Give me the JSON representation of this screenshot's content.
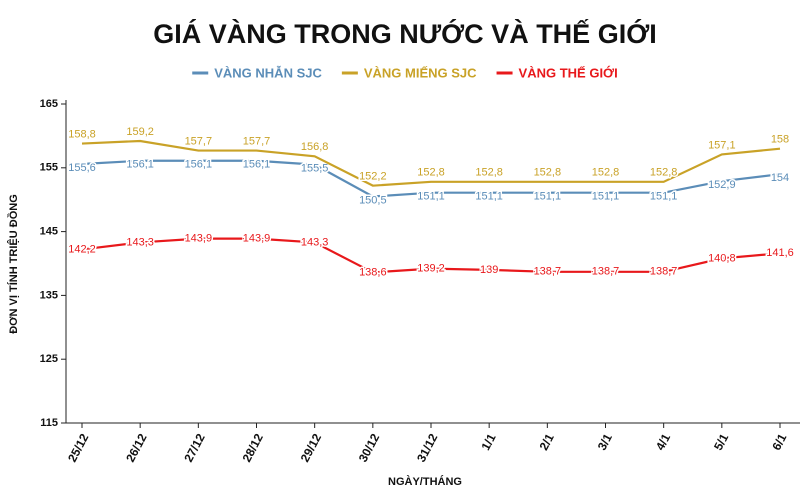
{
  "chart_data": {
    "type": "line",
    "title": "GIÁ VÀNG TRONG NƯỚC VÀ THẾ GIỚI",
    "x_label": "NGÀY/THÁNG",
    "y_label": "ĐƠN VỊ TÍNH TRIỆU ĐỒNG",
    "categories": [
      "25/12",
      "26/12",
      "27/12",
      "28/12",
      "29/12",
      "30/12",
      "31/12",
      "1/1",
      "2/1",
      "3/1",
      "4/1",
      "5/1",
      "6/1"
    ],
    "series": [
      {
        "name": "VÀNG NHẪN SJC",
        "color": "#5b8db8",
        "values": [
          155.6,
          156.1,
          156.1,
          156.1,
          155.5,
          150.5,
          151.1,
          151.1,
          151.1,
          151.1,
          151.1,
          152.9,
          154
        ],
        "value_labels": [
          "155,6",
          "156,1",
          "156,1",
          "156,1",
          "155,5",
          "150,5",
          "151,1",
          "151,1",
          "151,1",
          "151,1",
          "151,1",
          "152,9",
          "154"
        ]
      },
      {
        "name": "VÀNG MIẾNG SJC",
        "color": "#c9a227",
        "values": [
          158.8,
          159.2,
          157.7,
          157.7,
          156.8,
          152.2,
          152.8,
          152.8,
          152.8,
          152.8,
          152.8,
          157.1,
          158
        ],
        "value_labels": [
          "158,8",
          "159,2",
          "157,7",
          "157,7",
          "156,8",
          "152,2",
          "152,8",
          "152,8",
          "152,8",
          "152,8",
          "152,8",
          "157,1",
          "158"
        ]
      },
      {
        "name": "VÀNG THẾ GIỚI",
        "color": "#e8181b",
        "values": [
          142.2,
          143.3,
          143.9,
          143.9,
          143.3,
          138.6,
          139.2,
          139,
          138.7,
          138.7,
          138.7,
          140.8,
          141.6
        ],
        "value_labels": [
          "142,2",
          "143,3",
          "143,9",
          "143,9",
          "143,3",
          "138,6",
          "139,2",
          "139",
          "138,7",
          "138,7",
          "138,7",
          "140,8",
          "141,6"
        ]
      }
    ],
    "ylim": [
      115,
      165
    ],
    "yticks": [
      115,
      125,
      135,
      145,
      155,
      165
    ],
    "grid": false
  }
}
